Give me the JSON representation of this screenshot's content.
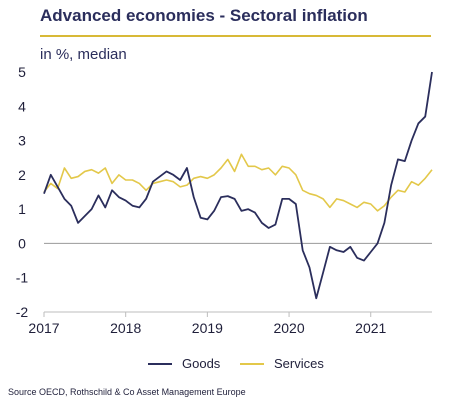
{
  "title": "Advanced economies - Sectoral inflation",
  "subtitle": "in %, median",
  "source": "Source OECD, Rothschild & Co Asset Management Europe",
  "colors": {
    "goods": "#2b2e5c",
    "services": "#e3c84a",
    "title": "#2b2e5c",
    "rule": "#d8b936",
    "zero": "#9a9a9a"
  },
  "chart_data": {
    "type": "line",
    "title": "Advanced economies - Sectoral inflation",
    "subtitle": "in %, median",
    "ylabel": "",
    "xlabel": "",
    "ylim": [
      -2,
      5
    ],
    "xlim": [
      2017.0,
      2021.75
    ],
    "yticks": [
      "5",
      "4",
      "3",
      "2",
      "1",
      "0",
      "-1",
      "-2"
    ],
    "xticks": [
      "2017",
      "2018",
      "2019",
      "2020",
      "2021"
    ],
    "legend_position": "bottom",
    "grid": false,
    "x": [
      2017.0,
      2017.083,
      2017.167,
      2017.25,
      2017.333,
      2017.417,
      2017.5,
      2017.583,
      2017.667,
      2017.75,
      2017.833,
      2017.917,
      2018.0,
      2018.083,
      2018.167,
      2018.25,
      2018.333,
      2018.417,
      2018.5,
      2018.583,
      2018.667,
      2018.75,
      2018.833,
      2018.917,
      2019.0,
      2019.083,
      2019.167,
      2019.25,
      2019.333,
      2019.417,
      2019.5,
      2019.583,
      2019.667,
      2019.75,
      2019.833,
      2019.917,
      2020.0,
      2020.083,
      2020.167,
      2020.25,
      2020.333,
      2020.417,
      2020.5,
      2020.583,
      2020.667,
      2020.75,
      2020.833,
      2020.917,
      2021.0,
      2021.083,
      2021.167,
      2021.25,
      2021.333,
      2021.417,
      2021.5,
      2021.583,
      2021.667,
      2021.75
    ],
    "series": [
      {
        "name": "Goods",
        "color": "#2b2e5c",
        "values": [
          1.45,
          2.0,
          1.65,
          1.3,
          1.1,
          0.6,
          0.8,
          1.0,
          1.4,
          1.05,
          1.55,
          1.35,
          1.25,
          1.1,
          1.05,
          1.3,
          1.8,
          1.95,
          2.1,
          2.0,
          1.85,
          2.2,
          1.35,
          0.75,
          0.7,
          0.95,
          1.35,
          1.38,
          1.3,
          0.95,
          1.0,
          0.9,
          0.6,
          0.45,
          0.55,
          1.3,
          1.3,
          1.15,
          -0.2,
          -0.7,
          -1.6,
          -0.85,
          -0.1,
          -0.2,
          -0.25,
          -0.1,
          -0.42,
          -0.5,
          -0.25,
          0.0,
          0.6,
          1.7,
          2.45,
          2.4,
          3.0,
          3.5,
          3.7,
          5.0
        ]
      },
      {
        "name": "Services",
        "color": "#e3c84a",
        "values": [
          1.5,
          1.75,
          1.6,
          2.2,
          1.9,
          1.95,
          2.1,
          2.15,
          2.05,
          2.2,
          1.75,
          2.0,
          1.85,
          1.85,
          1.75,
          1.55,
          1.75,
          1.8,
          1.85,
          1.8,
          1.65,
          1.7,
          1.9,
          1.95,
          1.9,
          2.0,
          2.2,
          2.45,
          2.1,
          2.6,
          2.25,
          2.25,
          2.15,
          2.2,
          2.0,
          2.25,
          2.2,
          2.0,
          1.55,
          1.45,
          1.4,
          1.3,
          1.05,
          1.3,
          1.25,
          1.15,
          1.05,
          1.2,
          1.15,
          0.95,
          1.1,
          1.35,
          1.55,
          1.5,
          1.8,
          1.7,
          1.9,
          2.15
        ]
      }
    ]
  }
}
